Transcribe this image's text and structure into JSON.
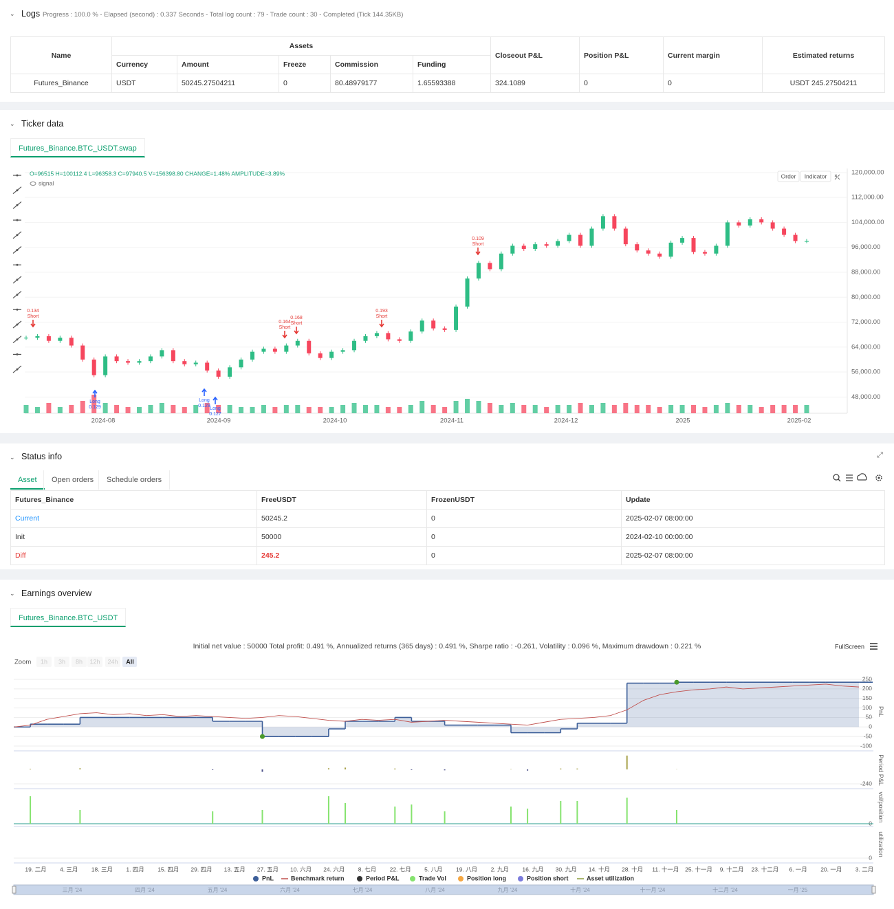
{
  "logs": {
    "title": "Logs",
    "summary": "Progress : 100.0 % - Elapsed (second) : 0.337 Seconds - Total log count : 79 - Trade count : 30 - Completed (Tick 144.35KB)",
    "table": {
      "headers": [
        "Name",
        "Assets",
        "Closeout P&L",
        "Position P&L",
        "Current margin",
        "Estimated returns"
      ],
      "subheaders": [
        "Currency",
        "Amount",
        "Freeze",
        "Commission",
        "Funding"
      ],
      "rows": [
        [
          "Futures_Binance",
          "USDT",
          "50245.27504211",
          "0",
          "80.48979177",
          "1.65593388",
          "324.1089",
          "0",
          "0",
          "USDT 245.27504211"
        ]
      ]
    }
  },
  "ticker": {
    "title": "Ticker data",
    "tab": "Futures_Binance.BTC_USDT.swap",
    "ohlc": "O=96515 H=100112.4 L=96358.3 C=97940.5 V=156398.80 CHANGE=1.48% AMPLITUDE=3.89%",
    "legend": "signal",
    "buttons": [
      "Order",
      "Indicator"
    ],
    "chart_data": {
      "type": "candlestick",
      "up_color": "#2ebd85",
      "down_color": "#f6465d",
      "close": [
        67000,
        67500,
        66000,
        67000,
        64500,
        60000,
        55000,
        61000,
        59500,
        59000,
        59500,
        61000,
        63000,
        59500,
        58500,
        59000,
        56500,
        54500,
        57500,
        60000,
        62500,
        63500,
        62500,
        64500,
        66000,
        62000,
        60500,
        62500,
        63000,
        66000,
        67500,
        68500,
        66500,
        66000,
        69000,
        72500,
        70000,
        69500,
        77000,
        86000,
        91000,
        89000,
        94000,
        96500,
        95500,
        97000,
        96500,
        98000,
        100000,
        96500,
        102000,
        106000,
        102000,
        97000,
        95000,
        94000,
        93000,
        97500,
        99000,
        94500,
        94000,
        96500,
        104000,
        103000,
        105000,
        104000,
        102000,
        100000,
        98000,
        98000
      ],
      "volume": [
        4,
        3,
        5,
        3,
        4,
        6,
        9,
        5,
        4,
        3,
        3,
        4,
        5,
        4,
        3,
        4,
        5,
        4,
        4,
        3,
        3,
        4,
        3,
        4,
        4,
        3,
        3,
        3,
        4,
        5,
        4,
        4,
        3,
        3,
        4,
        6,
        4,
        3,
        6,
        7,
        6,
        5,
        4,
        5,
        4,
        4,
        3,
        4,
        4,
        5,
        4,
        5,
        4,
        5,
        4,
        4,
        3,
        4,
        4,
        4,
        3,
        4,
        5,
        4,
        4,
        3,
        4,
        4,
        4,
        4
      ],
      "ylim": [
        43000,
        121300
      ],
      "yticks": [
        {
          "value": 48000,
          "label": "48,000.00"
        },
        {
          "value": 56000,
          "label": "56,000.00"
        },
        {
          "value": 64000,
          "label": "64,000.00"
        },
        {
          "value": 72000,
          "label": "72,000.00"
        },
        {
          "value": 80000,
          "label": "80,000.00"
        },
        {
          "value": 88000,
          "label": "88,000.00"
        },
        {
          "value": 96000,
          "label": "96,000.00"
        },
        {
          "value": 104000,
          "label": "104,000.00"
        },
        {
          "value": 112000,
          "label": "112,000.00"
        },
        {
          "value": 120000,
          "label": "120,000.00"
        }
      ],
      "x_labels": [
        "2024-08",
        "2024-09",
        "2024-10",
        "2024-11",
        "2024-12",
        "2025",
        "2025-02"
      ],
      "signals": [
        {
          "side": "Short",
          "size": "0.134"
        },
        {
          "side": "Long",
          "size": "0.129"
        },
        {
          "side": "Long",
          "size": "0.129"
        },
        {
          "side": "Long",
          "size": "0.127"
        },
        {
          "side": "Short",
          "size": "0.164"
        },
        {
          "side": "Short",
          "size": "0.168"
        },
        {
          "side": "Short",
          "size": "0.193"
        },
        {
          "side": "Short",
          "size": "0.109"
        }
      ]
    }
  },
  "status": {
    "title": "Status info",
    "tabs": [
      "Asset",
      "Open orders",
      "Schedule orders"
    ],
    "table": {
      "headers": [
        "Futures_Binance",
        "FreeUSDT",
        "FrozenUSDT",
        "Update"
      ],
      "rows": [
        [
          "Current",
          "50245.2",
          "0",
          "2025-02-07 08:00:00"
        ],
        [
          "Init",
          "50000",
          "0",
          "2024-02-10 00:00:00"
        ],
        [
          "Diff",
          "245.2",
          "0",
          "2025-02-07 08:00:00"
        ]
      ]
    }
  },
  "earnings": {
    "title": "Earnings overview",
    "tab": "Futures_Binance.BTC_USDT",
    "stats": "Initial net value : 50000 Total profit: 0.491 %, Annualized returns (365 days) : 0.491 %, Sharpe ratio : -0.261, Volatility : 0.096 %, Maximum drawdown : 0.221 %",
    "fullscreen": "FullScreen",
    "zoom": {
      "label": "Zoom",
      "buttons": [
        "1h",
        "3h",
        "8h",
        "12h",
        "24h",
        "All"
      ]
    },
    "chart_data": {
      "type": "line",
      "y_title": "PnL",
      "ylim": [
        -118,
        279
      ],
      "yticks": [
        -100,
        -50,
        0,
        50,
        100,
        150,
        200,
        250
      ],
      "x_labels": [
        "19. 二月",
        "4. 三月",
        "18. 三月",
        "1. 四月",
        "15. 四月",
        "29. 四月",
        "13. 五月",
        "27. 五月",
        "10. 六月",
        "24. 六月",
        "8. 七月",
        "22. 七月",
        "5. 八月",
        "19. 八月",
        "2. 九月",
        "16. 九月",
        "30. 九月",
        "14. 十月",
        "28. 十月",
        "11. 十一月",
        "25. 十一月",
        "9. 十二月",
        "23. 十二月",
        "6. 一月",
        "20. 一月",
        "3. 二月"
      ],
      "navigator": [
        "三月 '24",
        "四月 '24",
        "五月 '24",
        "六月 '24",
        "七月 '24",
        "八月 '24",
        "九月 '24",
        "十月 '24",
        "十一月 '24",
        "十二月 '24",
        "一月 '25"
      ],
      "series": [
        {
          "name": "PnL",
          "color": "#3d5f99",
          "values": [
            0,
            15,
            15,
            15,
            50,
            50,
            50,
            50,
            50,
            50,
            50,
            50,
            30,
            30,
            30,
            -50,
            -50,
            -50,
            -50,
            -10,
            30,
            30,
            30,
            50,
            30,
            30,
            10,
            10,
            10,
            10,
            -30,
            -30,
            -30,
            -10,
            20,
            20,
            20,
            230,
            230,
            230,
            235,
            235,
            235,
            235,
            235,
            235,
            235,
            235,
            235,
            235,
            235,
            235
          ]
        },
        {
          "name": "Benchmark return",
          "color": "#c0504d",
          "values": [
            0,
            10,
            40,
            55,
            70,
            75,
            65,
            70,
            60,
            65,
            55,
            60,
            55,
            50,
            45,
            50,
            60,
            55,
            45,
            35,
            30,
            40,
            35,
            40,
            25,
            30,
            35,
            30,
            25,
            20,
            15,
            10,
            25,
            40,
            45,
            50,
            60,
            90,
            140,
            170,
            185,
            195,
            200,
            210,
            200,
            205,
            210,
            215,
            220,
            225,
            215,
            210
          ]
        },
        {
          "name": "Period P&L",
          "color": "#333333",
          "up_color": "#a9a24c",
          "down_color": "#4b5088",
          "y_title": "Period P&L",
          "ylim": [
            -297,
            274
          ],
          "yticks": [
            -240
          ],
          "values": [
            0,
            10,
            0,
            0,
            20,
            0,
            0,
            0,
            0,
            0,
            0,
            0,
            -10,
            0,
            0,
            -40,
            0,
            0,
            0,
            20,
            30,
            0,
            0,
            15,
            -10,
            0,
            -15,
            0,
            0,
            0,
            5,
            -20,
            0,
            15,
            15,
            0,
            0,
            230,
            0,
            0,
            3,
            0,
            0,
            0,
            0,
            0,
            0,
            0,
            0,
            0,
            0,
            0
          ]
        },
        {
          "name": "Trade Vol",
          "color": "#86e36f",
          "y_title": "vol/position",
          "ylim": [
            0,
            0.48
          ],
          "yticks": [
            0
          ],
          "values": [
            0,
            0.4,
            0,
            0,
            0.2,
            0,
            0,
            0,
            0,
            0,
            0,
            0,
            0.18,
            0,
            0,
            0.2,
            0,
            0,
            0,
            0.4,
            0.3,
            0,
            0,
            0.25,
            0.28,
            0,
            0.18,
            0,
            0,
            0,
            0.25,
            0.22,
            0,
            0.33,
            0.33,
            0,
            0,
            0.38,
            0,
            0,
            0.2,
            0,
            0,
            0,
            0,
            0,
            0,
            0,
            0,
            0,
            0,
            0
          ]
        },
        {
          "name": "Position long",
          "color": "#f5a742"
        },
        {
          "name": "Position short",
          "color": "#7b7bdc"
        },
        {
          "name": "Asset utilization",
          "color": "#8c9e3c",
          "y_title": "utilization",
          "ylim": [
            0,
            1
          ],
          "yticks": [
            0
          ]
        }
      ]
    }
  }
}
